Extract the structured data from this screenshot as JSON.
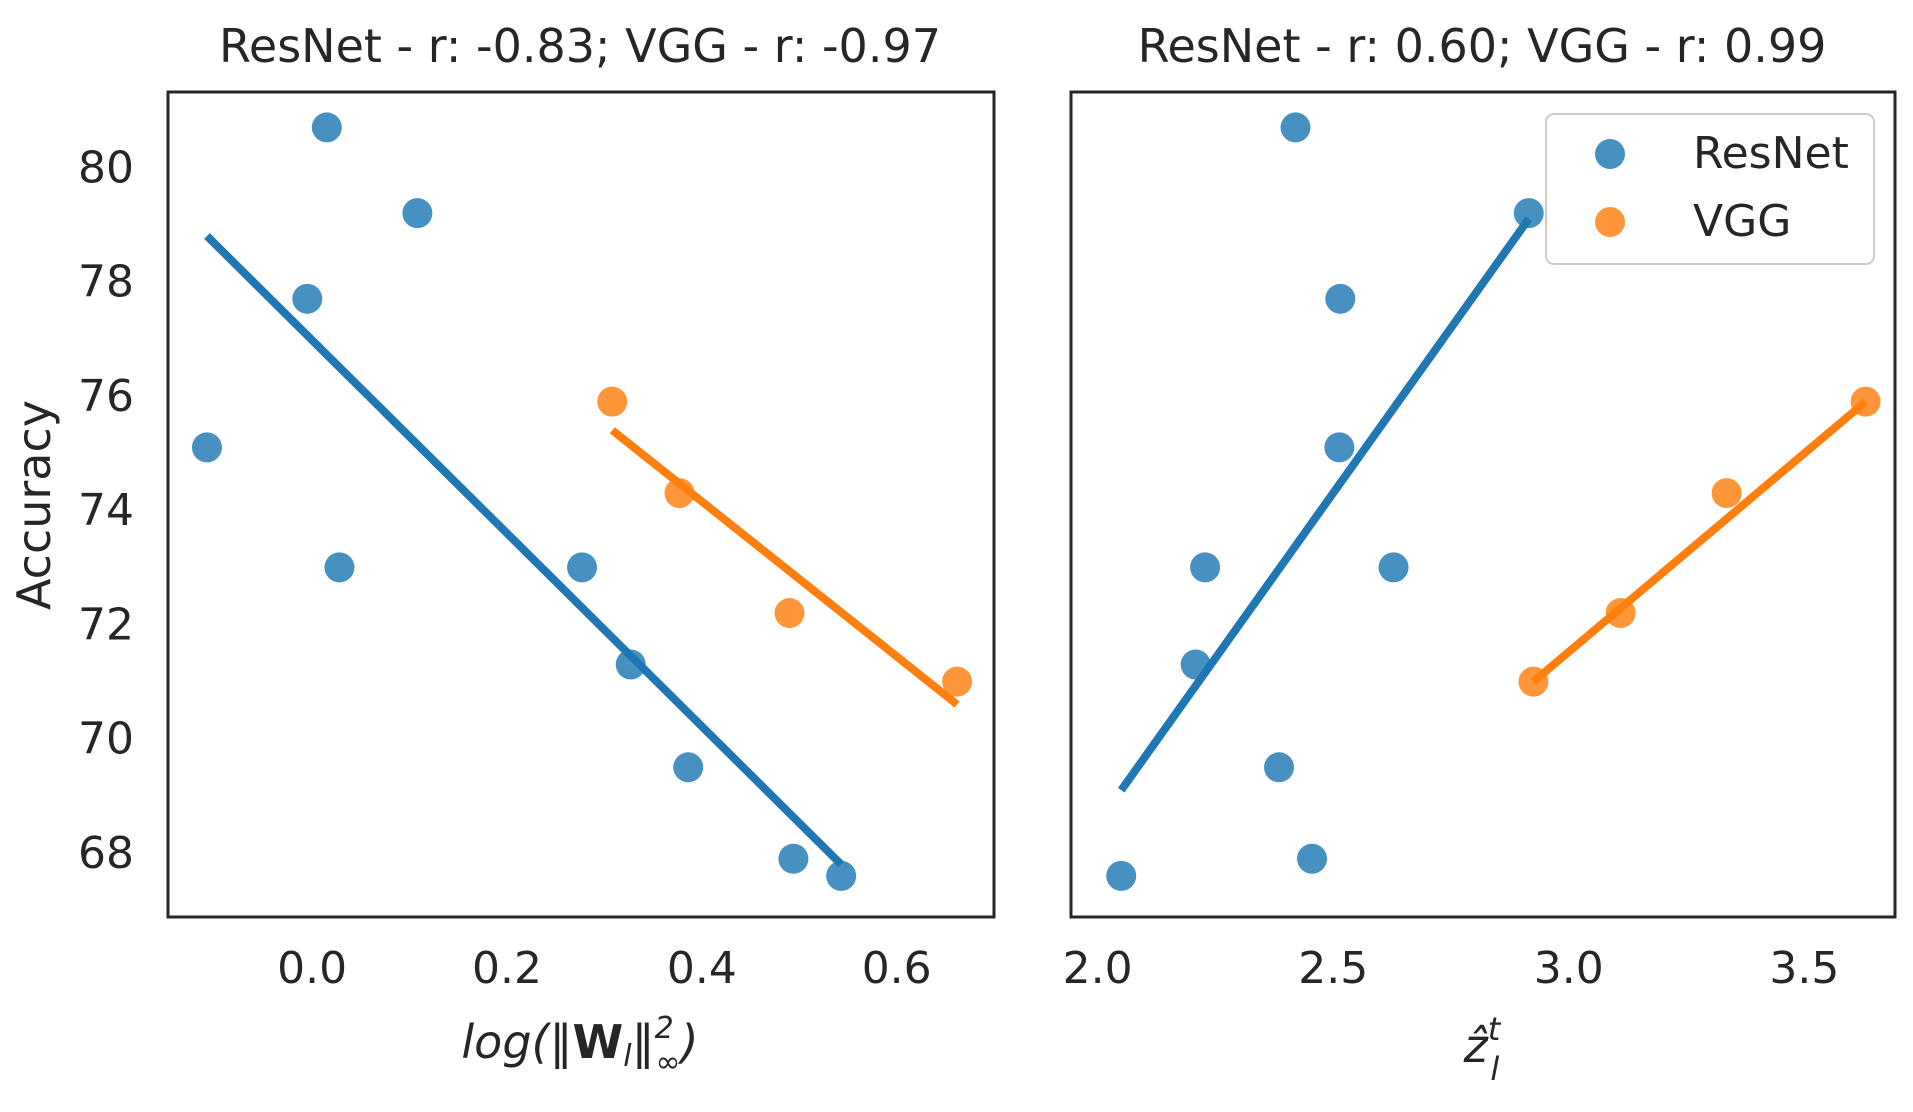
{
  "chart_data": [
    {
      "type": "scatter",
      "title": "ResNet - r: -0.83; VGG - r: -0.97",
      "xlabel": "log(‖W_l‖²_∞)",
      "ylabel": "Accuracy",
      "xlim": [
        -0.148,
        0.6999
      ],
      "ylim": [
        66.88,
        81.32
      ],
      "xticks": [
        "0.0",
        "0.2",
        "0.4",
        "0.6"
      ],
      "yticks": [
        "68",
        "70",
        "72",
        "74",
        "76",
        "78",
        "80"
      ],
      "grid": false,
      "series": [
        {
          "name": "ResNet",
          "color": "#1f77b4",
          "x": [
            0.015,
            -0.005,
            0.108,
            0.028,
            -0.108,
            0.277,
            0.327,
            0.386,
            0.494,
            0.543
          ],
          "y": [
            80.7,
            77.7,
            79.2,
            73.0,
            75.1,
            73.0,
            71.3,
            69.5,
            67.9,
            67.6
          ],
          "fit": {
            "x": [
              -0.108,
              0.543
            ],
            "y": [
              78.8,
              67.8
            ]
          }
        },
        {
          "name": "VGG",
          "color": "#ff7f0e",
          "x": [
            0.308,
            0.377,
            0.49,
            0.662
          ],
          "y": [
            75.9,
            74.3,
            72.2,
            71.0
          ],
          "fit": {
            "x": [
              0.308,
              0.662
            ],
            "y": [
              75.4,
              70.6
            ]
          }
        }
      ]
    },
    {
      "type": "scatter",
      "title": "ResNet - r: 0.60; VGG - r: 0.99",
      "xlabel": "ẑ_l^t",
      "ylabel": "",
      "xlim": [
        1.9434,
        3.6924
      ],
      "ylim": [
        66.88,
        81.32
      ],
      "xticks": [
        "2.0",
        "2.5",
        "3.0",
        "3.5"
      ],
      "yticks": [],
      "grid": false,
      "legend": {
        "position": "top-right",
        "entries": [
          "ResNet",
          "VGG"
        ]
      },
      "series": [
        {
          "name": "ResNet",
          "color": "#1f77b4",
          "x": [
            2.42,
            2.915,
            2.515,
            2.513,
            2.228,
            2.628,
            2.208,
            2.385,
            2.455,
            2.05
          ],
          "y": [
            80.7,
            79.2,
            77.7,
            75.1,
            73.0,
            73.0,
            71.3,
            69.5,
            67.9,
            67.6
          ],
          "fit": {
            "x": [
              2.05,
              2.915
            ],
            "y": [
              69.1,
              79.1
            ]
          }
        },
        {
          "name": "VGG",
          "color": "#ff7f0e",
          "x": [
            3.63,
            3.335,
            3.11,
            2.925
          ],
          "y": [
            75.9,
            74.3,
            72.2,
            71.0
          ],
          "fit": {
            "x": [
              2.925,
              3.63
            ],
            "y": [
              71.0,
              75.9
            ]
          }
        }
      ]
    }
  ]
}
